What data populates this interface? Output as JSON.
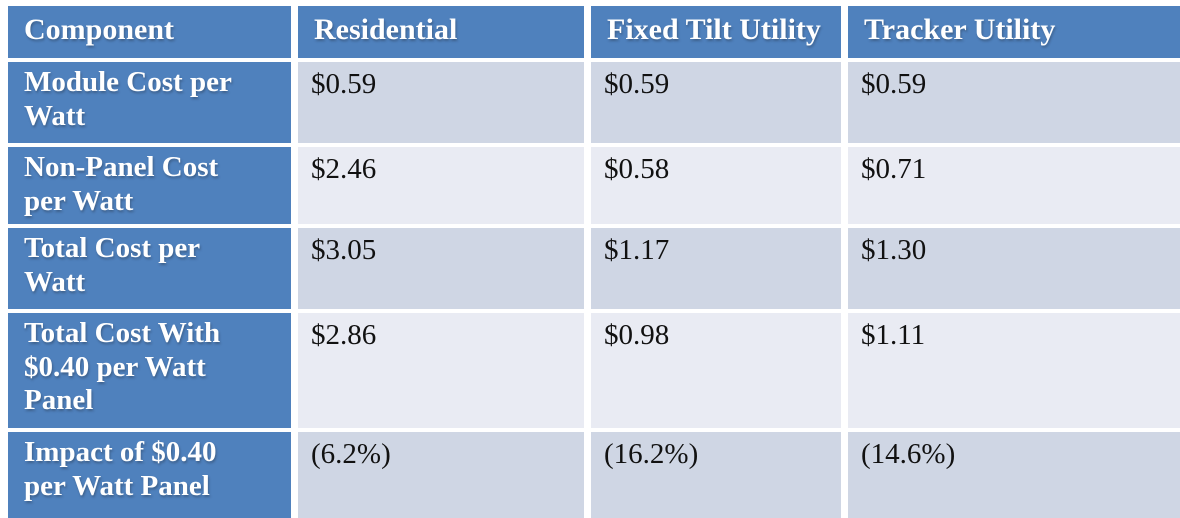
{
  "colors": {
    "header_bg": "#4F81BD",
    "row_header_bg": "#4F81BD",
    "band_dark": "#CFD6E4",
    "band_light": "#E9EBF3",
    "grid_line": "#FFFFFF",
    "header_text": "#FFFFFF",
    "cell_text": "#111111"
  },
  "chart_data": {
    "type": "table",
    "columns": [
      "Component",
      "Residential",
      "Fixed Tilt Utility",
      "Tracker Utility"
    ],
    "rows": [
      [
        "Module Cost per Watt",
        "$0.59",
        "$0.59",
        "$0.59"
      ],
      [
        "Non-Panel Cost per Watt",
        "$2.46",
        "$0.58",
        "$0.71"
      ],
      [
        "Total Cost per Watt",
        "$3.05",
        "$1.17",
        "$1.30"
      ],
      [
        "Total Cost With $0.40 per Watt Panel",
        "$2.86",
        "$0.98",
        "$1.11"
      ],
      [
        "Impact of $0.40 per Watt Panel",
        "(6.2%)",
        "(16.2%)",
        "(14.6%)"
      ]
    ]
  },
  "display": {
    "row_labels": [
      "Module Cost per\nWatt",
      "Non-Panel Cost\nper Watt",
      "Total Cost per\nWatt",
      "Total Cost With\n$0.40 per Watt\nPanel",
      "Impact of $0.40\nper Watt Panel"
    ]
  }
}
